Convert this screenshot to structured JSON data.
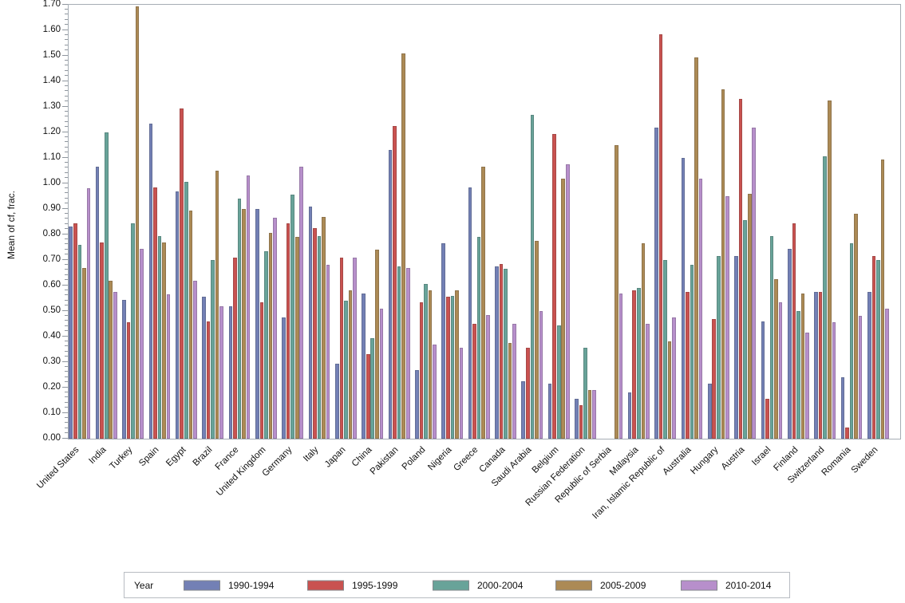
{
  "figure": {
    "y_axis_title": "Mean of cf, frac.",
    "legend_title": "Year"
  },
  "chart_data": {
    "type": "bar",
    "title": "",
    "xlabel": "",
    "ylabel": "Mean of cf, frac.",
    "ylim": [
      0,
      1.7
    ],
    "ytick_step": 0.1,
    "grid": false,
    "legend_position": "bottom",
    "legend_title": "Year",
    "frame_color": "#a6adb5",
    "categories": [
      "United States",
      "India",
      "Turkey",
      "Spain",
      "Egypt",
      "Brazil",
      "France",
      "United Kingdom",
      "Germany",
      "Italy",
      "Japan",
      "China",
      "Pakistan",
      "Poland",
      "Nigeria",
      "Greece",
      "Canada",
      "Saudi Arabia",
      "Belgium",
      "Russian Federation",
      "Republic of Serbia",
      "Malaysia",
      "Iran, Islamic Republic of",
      "Australia",
      "Hungary",
      "Austria",
      "Israel",
      "Finland",
      "Switzerland",
      "Romania",
      "Sweden"
    ],
    "series": [
      {
        "name": "1990-1994",
        "color": "#7380b5",
        "values": [
          0.83,
          1.065,
          0.545,
          1.235,
          0.97,
          0.555,
          0.52,
          0.9,
          0.475,
          0.91,
          0.295,
          0.57,
          1.13,
          0.27,
          0.765,
          0.985,
          0.675,
          0.225,
          0.215,
          0.155,
          null,
          0.18,
          1.22,
          1.1,
          0.215,
          0.715,
          0.46,
          0.745,
          0.575,
          0.24,
          0.575
        ]
      },
      {
        "name": "1995-1999",
        "color": "#c95250",
        "values": [
          0.845,
          0.77,
          0.455,
          0.985,
          1.295,
          0.46,
          0.71,
          0.535,
          0.845,
          0.825,
          0.71,
          0.33,
          1.225,
          0.535,
          0.555,
          0.45,
          0.685,
          0.355,
          1.195,
          0.13,
          null,
          0.58,
          1.585,
          0.575,
          0.47,
          1.33,
          0.155,
          0.845,
          0.575,
          0.045,
          0.715
        ]
      },
      {
        "name": "2000-2004",
        "color": "#68a399",
        "values": [
          0.76,
          1.2,
          0.845,
          0.795,
          1.005,
          0.7,
          0.94,
          0.735,
          0.955,
          0.795,
          0.54,
          0.395,
          0.675,
          0.605,
          0.56,
          0.79,
          0.665,
          1.27,
          0.445,
          0.355,
          null,
          0.59,
          0.7,
          0.68,
          0.715,
          0.855,
          0.795,
          0.5,
          1.105,
          0.765,
          0.7
        ]
      },
      {
        "name": "2005-2009",
        "color": "#ac8a55",
        "values": [
          0.67,
          0.62,
          1.695,
          0.77,
          0.895,
          1.05,
          0.9,
          0.805,
          0.79,
          0.87,
          0.58,
          0.74,
          1.51,
          0.58,
          0.58,
          1.065,
          0.375,
          0.775,
          1.02,
          0.19,
          1.15,
          0.765,
          0.38,
          1.495,
          1.37,
          0.96,
          0.625,
          0.57,
          1.325,
          0.88,
          1.095
        ]
      },
      {
        "name": "2010-2014",
        "color": "#b78fcb",
        "values": [
          0.98,
          0.575,
          0.745,
          0.565,
          0.62,
          0.52,
          1.03,
          0.865,
          1.065,
          0.68,
          0.71,
          0.51,
          0.67,
          0.37,
          0.355,
          0.485,
          0.45,
          0.5,
          1.075,
          0.19,
          0.57,
          0.45,
          0.475,
          1.02,
          0.95,
          1.22,
          0.535,
          0.415,
          0.455,
          0.48,
          0.51
        ]
      }
    ]
  }
}
